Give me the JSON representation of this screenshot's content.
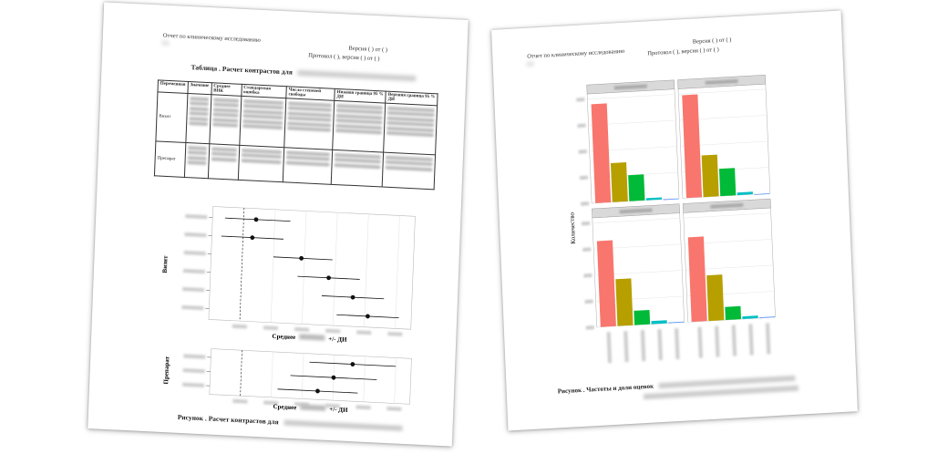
{
  "left_page": {
    "header_line1": "Отчет по клиническому исследованию",
    "header_placeholder": "(          )",
    "header_version": "Версия (          ) от (          )",
    "header_protocol": "Протокол (          ), версия (          ) от (          )",
    "table_title": "Таблица . Расчет контрастов для",
    "table_headers": [
      "Переменная",
      "Значение",
      "Среднее ВНК",
      "Стандартная ошибка",
      "Число степеней свободы",
      "Нижняя граница 95 % ДИ",
      "Верхняя граница 95 % ДИ"
    ],
    "row_groups": [
      "Визит",
      "Препарат"
    ],
    "plot1_ylabel": "Визит",
    "plot1_xlabel": "Среднее",
    "plot1_xlabel_suffix": "+/- ДИ",
    "plot2_ylabel": "Препарат",
    "plot2_xlabel": "Среднее",
    "plot2_xlabel_suffix": "+/- ДИ",
    "figure_caption": "Рисунок . Расчет контрастов для"
  },
  "right_page": {
    "header_line1": "Отчет по клиническому исследованию",
    "header_placeholder": "(          )",
    "header_version": "Версия (          ) от (          )",
    "header_protocol": "Протокол (          ), версия (          ) от (          )",
    "chart_ylabel": "Количество",
    "figure_caption": "Рисунок . Частоты и доли оценок"
  },
  "chart_data": [
    {
      "type": "scatter",
      "title": "",
      "ylabel": "Визит",
      "xlabel": "Среднее +/- ДИ",
      "points": [
        {
          "mean": 0.4,
          "low": -0.6,
          "high": 1.5
        },
        {
          "mean": 0.3,
          "low": -0.7,
          "high": 1.3
        },
        {
          "mean": 1.9,
          "low": 1.0,
          "high": 2.9
        },
        {
          "mean": 2.8,
          "low": 1.8,
          "high": 3.8
        },
        {
          "mean": 3.6,
          "low": 2.6,
          "high": 4.6
        },
        {
          "mean": 4.1,
          "low": 3.1,
          "high": 5.1
        }
      ],
      "reference_line": 0
    },
    {
      "type": "scatter",
      "title": "",
      "ylabel": "Препарат",
      "xlabel": "Среднее +/- ДИ",
      "points": [
        {
          "mean": 3.6,
          "low": 2.2,
          "high": 5.0
        },
        {
          "mean": 3.0,
          "low": 1.6,
          "high": 4.4
        },
        {
          "mean": 2.5,
          "low": 1.2,
          "high": 3.8
        }
      ],
      "reference_line": 0
    },
    {
      "type": "bar",
      "ylabel": "Количество",
      "facets": 4,
      "category_colors": [
        "#f8766d",
        "#b79f00",
        "#00ba38",
        "#00bfc4",
        "#619cff"
      ],
      "panels": [
        {
          "values": [
            380,
            150,
            100,
            8,
            0
          ]
        },
        {
          "values": [
            395,
            160,
            105,
            10,
            0
          ]
        },
        {
          "values": [
            330,
            180,
            55,
            12,
            3
          ]
        },
        {
          "values": [
            325,
            175,
            50,
            10,
            3
          ]
        }
      ]
    }
  ]
}
